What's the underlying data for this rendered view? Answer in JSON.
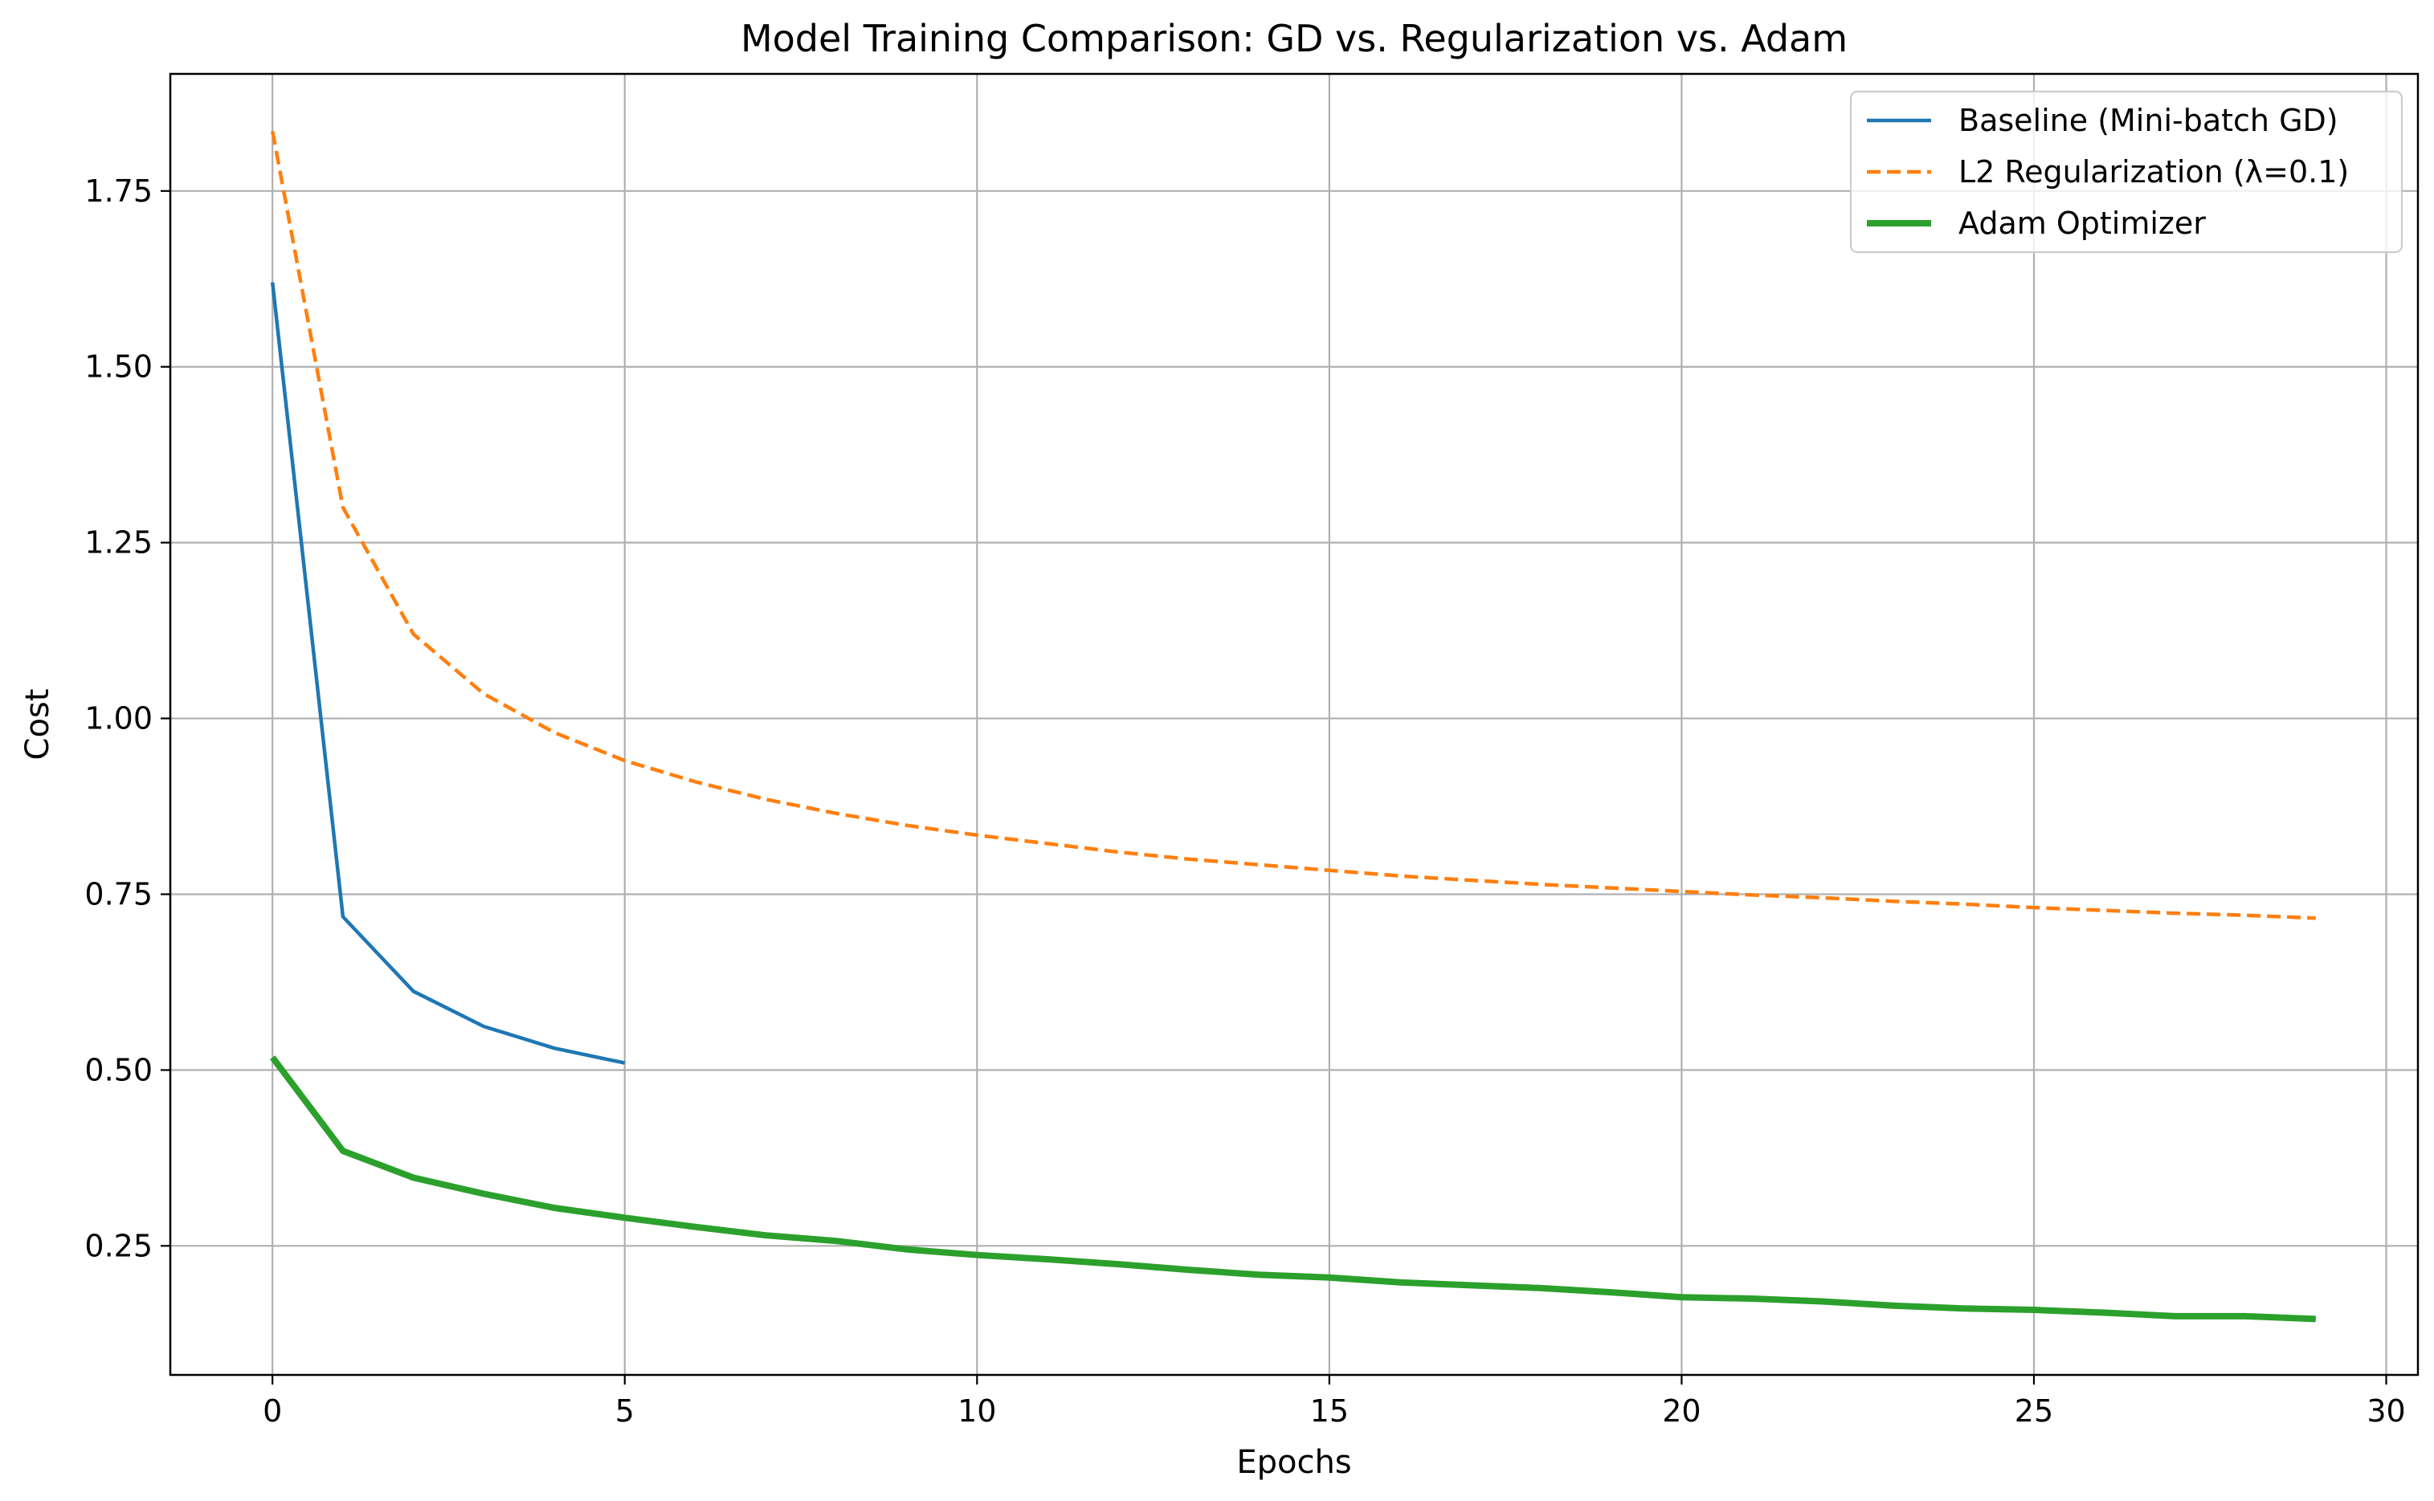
{
  "chart_data": {
    "type": "line",
    "title": "Model Training Comparison: GD vs. Regularization vs. Adam",
    "xlabel": "Epochs",
    "ylabel": "Cost",
    "xlim": [
      -1.45,
      30.45
    ],
    "ylim": [
      0.0665,
      1.9165
    ],
    "xticks": [
      0,
      5,
      10,
      15,
      20,
      25,
      30
    ],
    "yticks": [
      0.25,
      0.5,
      0.75,
      1.0,
      1.25,
      1.5,
      1.75
    ],
    "x_tick_labels": [
      "0",
      "5",
      "10",
      "15",
      "20",
      "25",
      "30"
    ],
    "y_tick_labels": [
      "0.25",
      "0.50",
      "0.75",
      "1.00",
      "1.25",
      "1.50",
      "1.75"
    ],
    "grid": true,
    "legend_position": "upper right",
    "series": [
      {
        "name": "Baseline (Mini-batch GD)",
        "color": "#1f77b4",
        "style": "solid",
        "x": [
          0,
          1,
          2,
          3,
          4,
          5
        ],
        "values": [
          1.62,
          0.718,
          0.612,
          0.562,
          0.531,
          0.51
        ]
      },
      {
        "name": "L2 Regularization (λ=0.1)",
        "color": "#ff7f0e",
        "style": "dashed",
        "x": [
          0,
          1,
          2,
          3,
          4,
          5,
          6,
          7,
          8,
          9,
          10,
          11,
          12,
          13,
          14,
          15,
          16,
          17,
          18,
          19,
          20,
          21,
          22,
          23,
          24,
          25,
          26,
          27,
          28,
          29
        ],
        "values": [
          1.835,
          1.3,
          1.12,
          1.035,
          0.98,
          0.94,
          0.91,
          0.885,
          0.865,
          0.848,
          0.834,
          0.822,
          0.81,
          0.8,
          0.792,
          0.784,
          0.776,
          0.77,
          0.764,
          0.759,
          0.754,
          0.749,
          0.745,
          0.74,
          0.736,
          0.731,
          0.727,
          0.723,
          0.72,
          0.716
        ]
      },
      {
        "name": "Adam Optimizer",
        "color": "#2ca02c",
        "style": "thick",
        "x": [
          0,
          1,
          2,
          3,
          4,
          5,
          6,
          7,
          8,
          9,
          10,
          11,
          12,
          13,
          14,
          15,
          16,
          17,
          18,
          19,
          20,
          21,
          22,
          23,
          24,
          25,
          26,
          27,
          28,
          29
        ],
        "values": [
          0.518,
          0.385,
          0.347,
          0.324,
          0.304,
          0.29,
          0.277,
          0.265,
          0.257,
          0.245,
          0.237,
          0.231,
          0.224,
          0.216,
          0.209,
          0.205,
          0.198,
          0.194,
          0.19,
          0.184,
          0.177,
          0.175,
          0.171,
          0.165,
          0.161,
          0.159,
          0.155,
          0.15,
          0.15,
          0.146
        ]
      }
    ]
  }
}
